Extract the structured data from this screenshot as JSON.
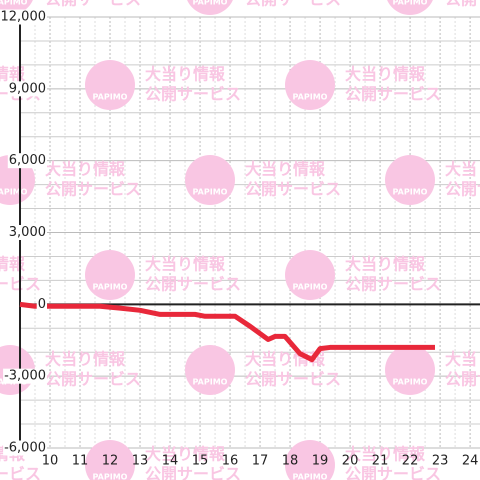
{
  "chart_data": {
    "type": "line",
    "watermark": {
      "logo": "PAPIMO",
      "line1": "大当り情報",
      "line2": "公開サービス"
    },
    "x": [
      9,
      9.5,
      11.67,
      12.33,
      13,
      13.67,
      14.83,
      15.17,
      16.17,
      16.67,
      17.27,
      17.5,
      17.83,
      18.33,
      18.73,
      19,
      19.33,
      22.83
    ],
    "series": [
      {
        "color": "#e8283a",
        "values": [
          0,
          -80,
          -80,
          -160,
          -250,
          -420,
          -420,
          -500,
          -500,
          -920,
          -1470,
          -1340,
          -1340,
          -2060,
          -2310,
          -1850,
          -1800,
          -1800
        ]
      }
    ],
    "xlim": [
      9,
      24.33
    ],
    "xticks": [
      10,
      11,
      12,
      13,
      14,
      15,
      16,
      17,
      18,
      19,
      20,
      21,
      22,
      23,
      24
    ],
    "ylim": [
      -6000,
      12000
    ],
    "yticks": [
      {
        "value": -6000,
        "label": "-6,000"
      },
      {
        "value": -3000,
        "label": "-3,000"
      },
      0,
      {
        "value": 3000,
        "label": "3,000"
      },
      {
        "value": 6000,
        "label": "6,000"
      },
      {
        "value": 9000,
        "label": "9,000"
      },
      {
        "value": 12000,
        "label": "12,000"
      }
    ],
    "grid": true
  }
}
